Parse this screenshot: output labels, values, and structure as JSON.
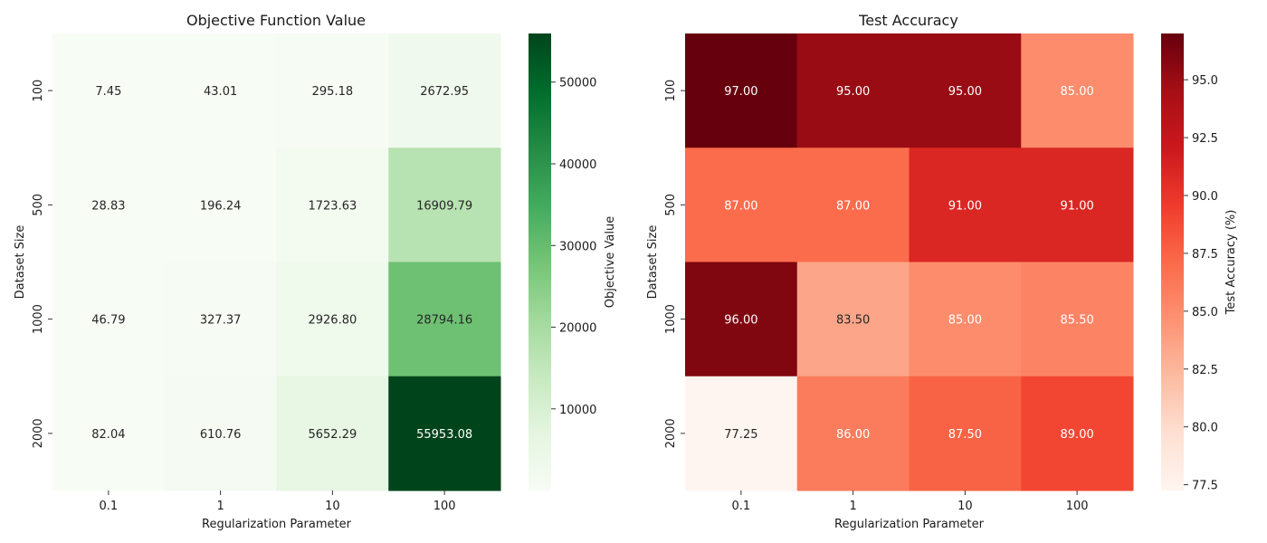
{
  "chart_data": [
    {
      "type": "heatmap",
      "title": "Objective Function Value",
      "xlabel": "Regularization Parameter",
      "ylabel": "Dataset Size",
      "x_categories": [
        "0.1",
        "1",
        "10",
        "100"
      ],
      "y_categories": [
        "100",
        "500",
        "1000",
        "2000"
      ],
      "values": [
        [
          7.45,
          43.01,
          295.18,
          2672.95
        ],
        [
          28.83,
          196.24,
          1723.63,
          16909.79
        ],
        [
          46.79,
          327.37,
          2926.8,
          28794.16
        ],
        [
          82.04,
          610.76,
          5652.29,
          55953.08
        ]
      ],
      "value_labels": [
        [
          "7.45",
          "43.01",
          "295.18",
          "2672.95"
        ],
        [
          "28.83",
          "196.24",
          "1723.63",
          "16909.79"
        ],
        [
          "46.79",
          "327.37",
          "2926.80",
          "28794.16"
        ],
        [
          "82.04",
          "610.76",
          "5652.29",
          "55953.08"
        ]
      ],
      "colorbar": {
        "label": "Objective Value",
        "range": [
          7.45,
          55953.08
        ],
        "ticks": [
          10000,
          20000,
          30000,
          40000,
          50000
        ],
        "tick_labels": [
          "10000",
          "20000",
          "30000",
          "40000",
          "50000"
        ]
      },
      "colormap": "Greens",
      "colormap_stops": [
        "#f7fcf5",
        "#e5f5e0",
        "#c7e9c0",
        "#a1d99b",
        "#74c476",
        "#41ab5d",
        "#238b45",
        "#006d2c",
        "#00441b"
      ]
    },
    {
      "type": "heatmap",
      "title": "Test Accuracy",
      "xlabel": "Regularization Parameter",
      "ylabel": "Dataset Size",
      "x_categories": [
        "0.1",
        "1",
        "10",
        "100"
      ],
      "y_categories": [
        "100",
        "500",
        "1000",
        "2000"
      ],
      "values": [
        [
          97.0,
          95.0,
          95.0,
          85.0
        ],
        [
          87.0,
          87.0,
          91.0,
          91.0
        ],
        [
          96.0,
          83.5,
          85.0,
          85.5
        ],
        [
          77.25,
          86.0,
          87.5,
          89.0
        ]
      ],
      "value_labels": [
        [
          "97.00",
          "95.00",
          "95.00",
          "85.00"
        ],
        [
          "87.00",
          "87.00",
          "91.00",
          "91.00"
        ],
        [
          "96.00",
          "83.50",
          "85.00",
          "85.50"
        ],
        [
          "77.25",
          "86.00",
          "87.50",
          "89.00"
        ]
      ],
      "colorbar": {
        "label": "Test Accuracy (%)",
        "range": [
          77.25,
          97.0
        ],
        "ticks": [
          77.5,
          80.0,
          82.5,
          85.0,
          87.5,
          90.0,
          92.5,
          95.0
        ],
        "tick_labels": [
          "77.5",
          "80.0",
          "82.5",
          "85.0",
          "87.5",
          "90.0",
          "92.5",
          "95.0"
        ]
      },
      "colormap": "Reds",
      "colormap_stops": [
        "#fff5f0",
        "#fee0d2",
        "#fcbba1",
        "#fc9272",
        "#fb6a4a",
        "#ef3b2c",
        "#cb181d",
        "#a50f15",
        "#67000d"
      ]
    }
  ]
}
